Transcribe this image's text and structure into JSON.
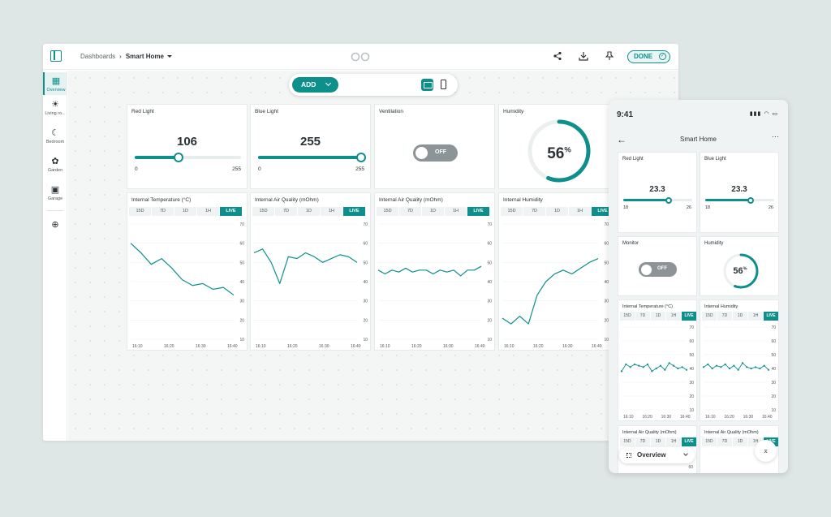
{
  "breadcrumb": {
    "parent": "Dashboards",
    "current": "Smart Home"
  },
  "toolbar": {
    "done_label": "DONE"
  },
  "add_bar": {
    "add_label": "ADD"
  },
  "sidebar": {
    "items": [
      {
        "label": "Overview",
        "icon": "grid-icon"
      },
      {
        "label": "Living ro...",
        "icon": "sun-icon"
      },
      {
        "label": "Bedroom",
        "icon": "moon-icon"
      },
      {
        "label": "Garden",
        "icon": "gear-pin-icon"
      },
      {
        "label": "Garage",
        "icon": "garage-icon"
      }
    ]
  },
  "widgets": {
    "red_light": {
      "title": "Red Light",
      "value": "106",
      "min": "0",
      "max": "255",
      "fraction": 0.416
    },
    "blue_light": {
      "title": "Blue Light",
      "value": "255",
      "min": "0",
      "max": "255",
      "fraction": 1.0
    },
    "ventilation": {
      "title": "Ventilation",
      "state": "OFF"
    },
    "humidity": {
      "title": "Humidity",
      "value": "56",
      "unit": "%",
      "fraction": 0.56
    }
  },
  "time_tabs": [
    "15D",
    "7D",
    "1D",
    "1H",
    "LIVE"
  ],
  "x_ticks": [
    "16:10",
    "16:20",
    "16:30",
    "16:40"
  ],
  "y_ticks": [
    "70",
    "60",
    "50",
    "40",
    "30",
    "20",
    "10"
  ],
  "chart_data": [
    {
      "type": "line",
      "title": "Internal Temperature (°C)",
      "ylim": [
        10,
        70
      ],
      "values": [
        60,
        55,
        49,
        52,
        47,
        41,
        38,
        39,
        36,
        37,
        33
      ]
    },
    {
      "type": "line",
      "title": "Internal Air Quality (mOhm)",
      "ylim": [
        10,
        70
      ],
      "values": [
        55,
        57,
        50,
        39,
        53,
        52,
        55,
        53,
        50,
        52,
        54,
        53,
        50
      ]
    },
    {
      "type": "line",
      "title": "Internal Air Quality (mOhm)",
      "ylim": [
        10,
        70
      ],
      "values": [
        46,
        44,
        46,
        45,
        47,
        45,
        46,
        46,
        44,
        46,
        45,
        46,
        43,
        46,
        46,
        48
      ]
    },
    {
      "type": "line",
      "title": "Internal Humidity",
      "ylim": [
        10,
        70
      ],
      "values": [
        21,
        18,
        22,
        18,
        33,
        40,
        44,
        46,
        44,
        47,
        50,
        52
      ]
    }
  ],
  "phone": {
    "time": "9:41",
    "title": "Smart Home",
    "red_light": {
      "title": "Red Light",
      "value": "23.3",
      "min": "18",
      "max": "26",
      "fraction": 0.66
    },
    "blue_light": {
      "title": "Blue Light",
      "value": "23.3",
      "min": "18",
      "max": "26",
      "fraction": 0.66
    },
    "monitor": {
      "title": "Monitor",
      "state": "OFF"
    },
    "humidity": {
      "title": "Humidity",
      "value": "56",
      "unit": "%",
      "fraction": 0.56
    },
    "temp_title": "Internal Temperature (°C)",
    "hum_title": "Internal Humidity",
    "air_title_1": "Internal Air Quality (mOhm)",
    "air_title_2": "Internal Air Quality (mOhm)",
    "temp_values": [
      38,
      43,
      41,
      43,
      42,
      41,
      43,
      38,
      40,
      42,
      39,
      44,
      42,
      40,
      41,
      39
    ],
    "hum_values": [
      41,
      43,
      40,
      42,
      41,
      43,
      40,
      42,
      39,
      44,
      41,
      40,
      41,
      40,
      42,
      39
    ],
    "y_ticks": [
      "70",
      "60",
      "50",
      "40",
      "30",
      "20",
      "10"
    ],
    "bottom_label": "Overview",
    "air_next_tick": "60"
  },
  "colors": {
    "accent": "#0d8f8c"
  }
}
